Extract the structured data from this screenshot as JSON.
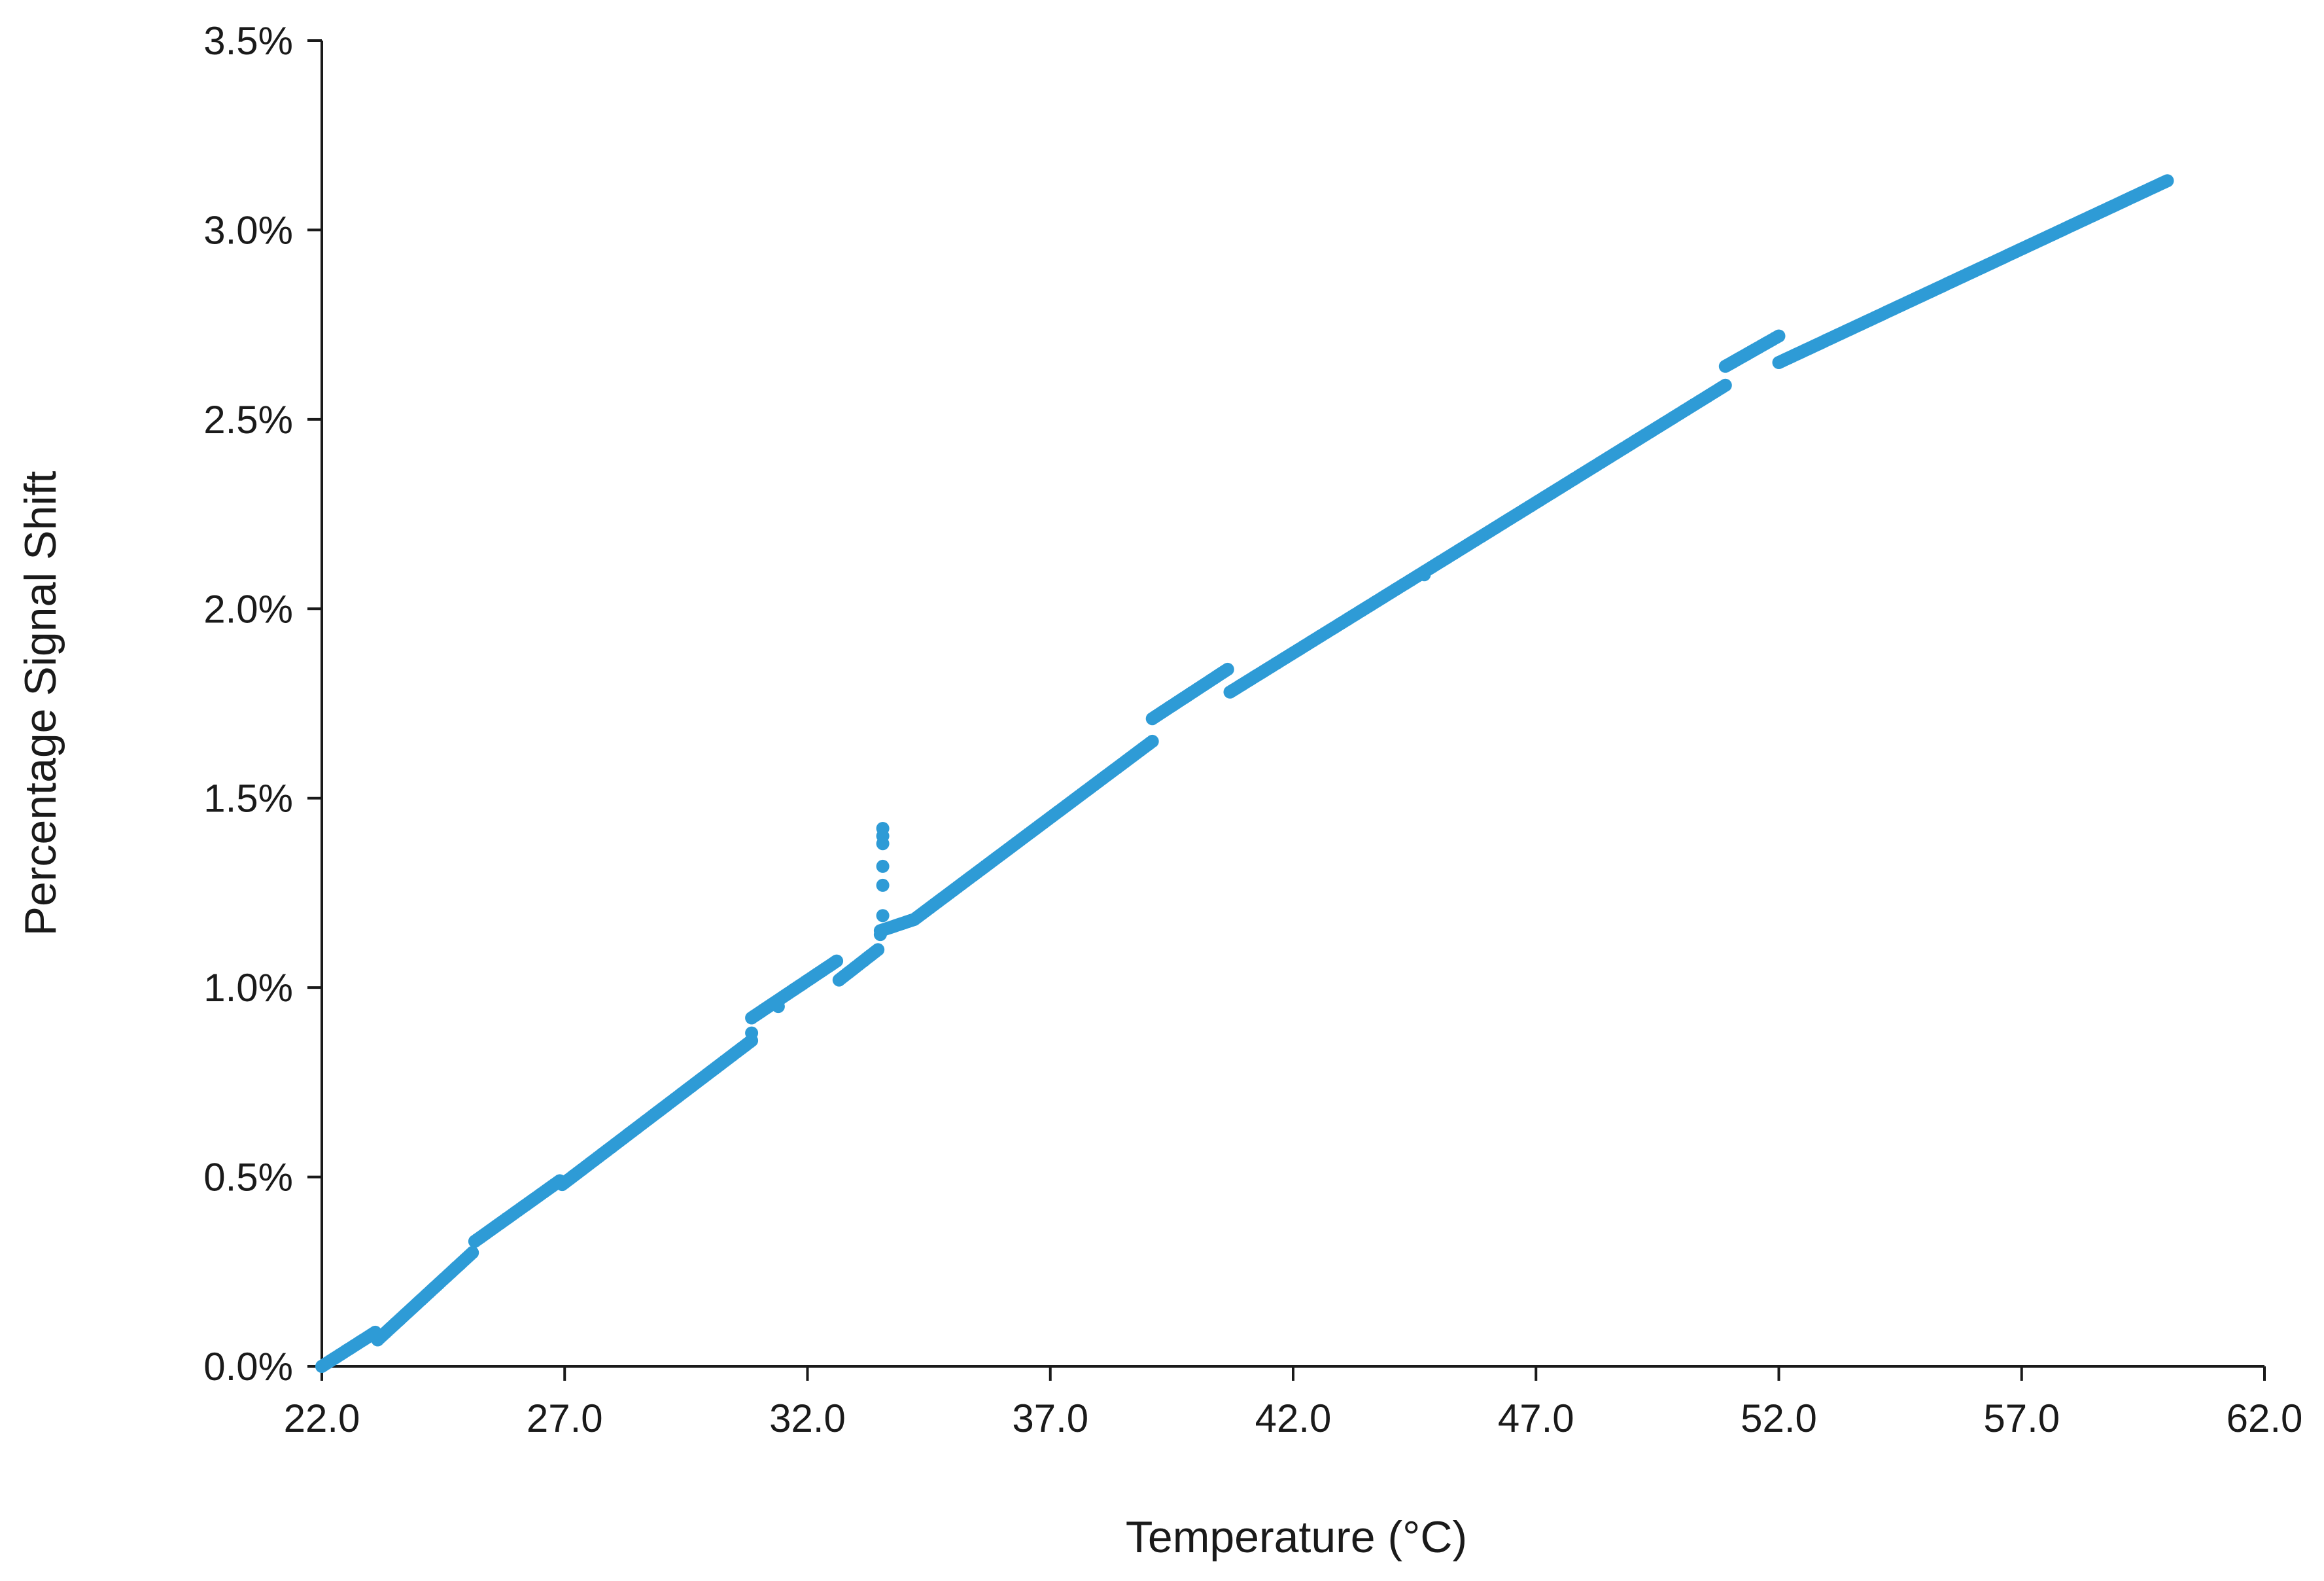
{
  "chart_data": {
    "type": "scatter",
    "title": "",
    "xlabel": "Temperature (°C)",
    "ylabel": "Percentage Signal Shift",
    "xlim": [
      22.0,
      62.0
    ],
    "ylim": [
      0.0,
      3.5
    ],
    "x_ticks": [
      "22.0",
      "27.0",
      "32.0",
      "37.0",
      "42.0",
      "47.0",
      "52.0",
      "57.0",
      "62.0"
    ],
    "y_ticks": [
      "0.0%",
      "0.5%",
      "1.0%",
      "1.5%",
      "2.0%",
      "2.5%",
      "3.0%",
      "3.5%"
    ],
    "grid": false,
    "legend": "none",
    "marker_color": "#2e9bd6",
    "segments": [
      {
        "x": [
          22.0,
          23.1
        ],
        "y": [
          0.0,
          0.09
        ]
      },
      {
        "x": [
          23.15,
          25.1
        ],
        "y": [
          0.07,
          0.3
        ]
      },
      {
        "x": [
          25.15,
          26.9
        ],
        "y": [
          0.33,
          0.49
        ]
      },
      {
        "x": [
          26.95,
          30.85
        ],
        "y": [
          0.48,
          0.86
        ]
      },
      {
        "x": [
          30.85,
          32.6
        ],
        "y": [
          0.92,
          1.07
        ]
      },
      {
        "x": [
          32.65,
          33.45
        ],
        "y": [
          1.02,
          1.1
        ]
      },
      {
        "x": [
          33.5,
          34.2
        ],
        "y": [
          1.15,
          1.18
        ]
      },
      {
        "x": [
          34.2,
          39.1
        ],
        "y": [
          1.18,
          1.65
        ]
      },
      {
        "x": [
          39.1,
          40.65
        ],
        "y": [
          1.71,
          1.84
        ]
      },
      {
        "x": [
          40.7,
          50.9
        ],
        "y": [
          1.78,
          2.59
        ]
      },
      {
        "x": [
          50.9,
          52.0
        ],
        "y": [
          2.64,
          2.72
        ]
      },
      {
        "x": [
          52.0,
          60.0
        ],
        "y": [
          2.65,
          3.13
        ]
      }
    ],
    "outliers": [
      {
        "x": 33.55,
        "y": 1.42
      },
      {
        "x": 33.55,
        "y": 1.4
      },
      {
        "x": 33.55,
        "y": 1.38
      },
      {
        "x": 33.55,
        "y": 1.32
      },
      {
        "x": 33.55,
        "y": 1.27
      },
      {
        "x": 33.55,
        "y": 1.19
      },
      {
        "x": 33.5,
        "y": 1.14
      },
      {
        "x": 31.4,
        "y": 0.95
      },
      {
        "x": 44.7,
        "y": 2.09
      },
      {
        "x": 30.85,
        "y": 0.88
      }
    ]
  }
}
